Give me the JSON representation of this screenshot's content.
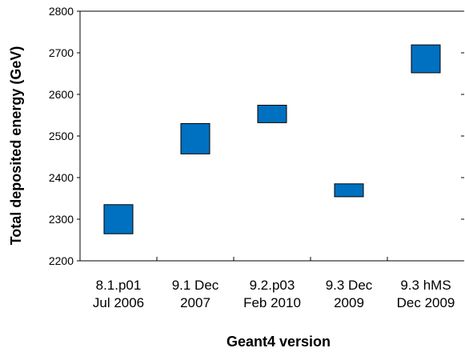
{
  "chart_data": {
    "type": "scatter",
    "marker": "box",
    "color": "#0070C0",
    "categories": [
      [
        "8.1.p01",
        "Jul 2006"
      ],
      [
        "9.1 Dec",
        "2007"
      ],
      [
        "9.2.p03",
        "Feb 2010"
      ],
      [
        "9.3 Dec",
        "2009"
      ],
      [
        "9.3 hMS",
        "Dec 2009"
      ]
    ],
    "ranges": [
      {
        "low": 2265,
        "high": 2335
      },
      {
        "low": 2457,
        "high": 2530
      },
      {
        "low": 2532,
        "high": 2574
      },
      {
        "low": 2354,
        "high": 2385
      },
      {
        "low": 2652,
        "high": 2719
      }
    ],
    "xlabel": "Geant4 version",
    "ylabel": "Total deposited energy (GeV)",
    "ylim": [
      2200,
      2800
    ],
    "yticks": [
      2200,
      2300,
      2400,
      2500,
      2600,
      2700,
      2800
    ],
    "grid": false
  }
}
